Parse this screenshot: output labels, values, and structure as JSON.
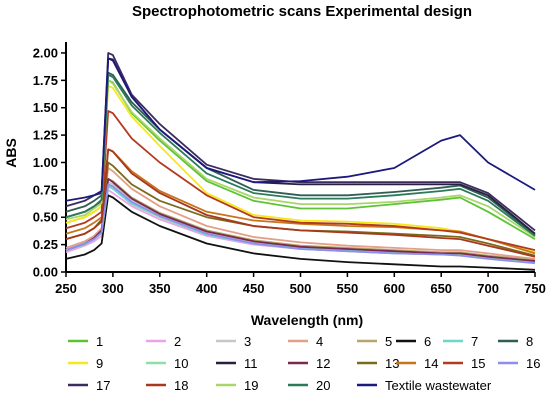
{
  "chart_data": {
    "type": "line",
    "title": "Spectrophotometric scans Experimental design",
    "xlabel": "Wavelength (nm)",
    "ylabel": "ABS",
    "xlim": [
      250,
      750
    ],
    "ylim": [
      0,
      2.1
    ],
    "x_ticks": [
      "250",
      "300",
      "350",
      "400",
      "450",
      "500",
      "550",
      "600",
      "650",
      "700",
      "750"
    ],
    "y_ticks": [
      "0.00",
      "0.25",
      "0.50",
      "0.75",
      "1.00",
      "1.25",
      "1.50",
      "1.75",
      "2.00"
    ],
    "grid": false,
    "legend_position": "bottom",
    "x": [
      250,
      270,
      280,
      288,
      295,
      300,
      320,
      350,
      400,
      450,
      500,
      550,
      600,
      650,
      670,
      700,
      750
    ],
    "series": [
      {
        "name": "1",
        "color": "#5ec236",
        "values": [
          0.45,
          0.5,
          0.55,
          0.6,
          1.75,
          1.73,
          1.45,
          1.2,
          0.83,
          0.65,
          0.58,
          0.58,
          0.62,
          0.66,
          0.68,
          0.55,
          0.3
        ]
      },
      {
        "name": "2",
        "color": "#e9a4e6",
        "values": [
          0.18,
          0.24,
          0.28,
          0.33,
          0.75,
          0.72,
          0.6,
          0.48,
          0.33,
          0.25,
          0.21,
          0.19,
          0.17,
          0.16,
          0.16,
          0.13,
          0.1
        ]
      },
      {
        "name": "3",
        "color": "#c7c7c7",
        "values": [
          0.2,
          0.25,
          0.3,
          0.36,
          0.82,
          0.8,
          0.66,
          0.52,
          0.36,
          0.27,
          0.22,
          0.2,
          0.18,
          0.16,
          0.16,
          0.13,
          0.09
        ]
      },
      {
        "name": "4",
        "color": "#e3a088",
        "values": [
          0.22,
          0.28,
          0.33,
          0.4,
          0.95,
          0.92,
          0.76,
          0.6,
          0.42,
          0.32,
          0.27,
          0.24,
          0.22,
          0.2,
          0.2,
          0.17,
          0.12
        ]
      },
      {
        "name": "5",
        "color": "#b7a56a",
        "values": [
          0.2,
          0.26,
          0.31,
          0.37,
          0.85,
          0.83,
          0.68,
          0.54,
          0.38,
          0.29,
          0.24,
          0.22,
          0.2,
          0.18,
          0.18,
          0.15,
          0.11
        ]
      },
      {
        "name": "6",
        "color": "#111111",
        "values": [
          0.12,
          0.16,
          0.2,
          0.26,
          0.7,
          0.68,
          0.55,
          0.42,
          0.26,
          0.17,
          0.12,
          0.09,
          0.07,
          0.05,
          0.05,
          0.04,
          0.02
        ]
      },
      {
        "name": "7",
        "color": "#6fd6c9",
        "values": [
          0.2,
          0.25,
          0.3,
          0.36,
          0.78,
          0.76,
          0.62,
          0.5,
          0.34,
          0.26,
          0.22,
          0.2,
          0.18,
          0.17,
          0.16,
          0.14,
          0.1
        ]
      },
      {
        "name": "8",
        "color": "#2f5e55",
        "values": [
          0.55,
          0.6,
          0.65,
          0.7,
          1.82,
          1.8,
          1.55,
          1.3,
          0.95,
          0.75,
          0.7,
          0.7,
          0.73,
          0.77,
          0.79,
          0.68,
          0.34
        ]
      },
      {
        "name": "9",
        "color": "#f6e81a",
        "values": [
          0.45,
          0.5,
          0.55,
          0.6,
          1.7,
          1.68,
          1.42,
          1.15,
          0.72,
          0.52,
          0.47,
          0.46,
          0.44,
          0.4,
          0.37,
          0.3,
          0.18
        ]
      },
      {
        "name": "10",
        "color": "#8de0a5",
        "values": [
          0.2,
          0.26,
          0.3,
          0.36,
          0.8,
          0.78,
          0.64,
          0.5,
          0.35,
          0.26,
          0.21,
          0.19,
          0.17,
          0.16,
          0.16,
          0.13,
          0.09
        ]
      },
      {
        "name": "11",
        "color": "#2b1f3f",
        "values": [
          0.5,
          0.55,
          0.6,
          0.65,
          1.95,
          1.93,
          1.6,
          1.3,
          0.95,
          0.82,
          0.8,
          0.8,
          0.8,
          0.8,
          0.8,
          0.7,
          0.35
        ]
      },
      {
        "name": "12",
        "color": "#7b2a4e",
        "values": [
          0.2,
          0.26,
          0.31,
          0.38,
          0.85,
          0.82,
          0.67,
          0.53,
          0.37,
          0.28,
          0.23,
          0.21,
          0.19,
          0.17,
          0.17,
          0.14,
          0.1
        ]
      },
      {
        "name": "13",
        "color": "#7a6a1c",
        "values": [
          0.3,
          0.35,
          0.4,
          0.48,
          1.0,
          0.97,
          0.8,
          0.65,
          0.5,
          0.42,
          0.38,
          0.37,
          0.35,
          0.33,
          0.32,
          0.26,
          0.15
        ]
      },
      {
        "name": "14",
        "color": "#c8741c",
        "values": [
          0.35,
          0.4,
          0.45,
          0.5,
          1.12,
          1.1,
          0.92,
          0.74,
          0.55,
          0.47,
          0.44,
          0.42,
          0.41,
          0.38,
          0.37,
          0.3,
          0.17
        ]
      },
      {
        "name": "15",
        "color": "#b33a1e",
        "values": [
          0.4,
          0.45,
          0.5,
          0.55,
          1.47,
          1.45,
          1.22,
          1.0,
          0.7,
          0.5,
          0.45,
          0.44,
          0.42,
          0.38,
          0.36,
          0.3,
          0.2
        ]
      },
      {
        "name": "16",
        "color": "#8e8ef0",
        "values": [
          0.2,
          0.26,
          0.3,
          0.36,
          0.8,
          0.78,
          0.64,
          0.51,
          0.35,
          0.26,
          0.21,
          0.19,
          0.17,
          0.16,
          0.15,
          0.12,
          0.08
        ]
      },
      {
        "name": "17",
        "color": "#3a2c5e",
        "values": [
          0.6,
          0.65,
          0.7,
          0.72,
          2.0,
          1.98,
          1.62,
          1.35,
          0.98,
          0.85,
          0.82,
          0.82,
          0.82,
          0.82,
          0.82,
          0.72,
          0.38
        ]
      },
      {
        "name": "18",
        "color": "#a8381d",
        "values": [
          0.3,
          0.35,
          0.4,
          0.46,
          1.12,
          1.1,
          0.9,
          0.72,
          0.52,
          0.42,
          0.38,
          0.36,
          0.34,
          0.31,
          0.3,
          0.24,
          0.14
        ]
      },
      {
        "name": "19",
        "color": "#a9d66a",
        "values": [
          0.48,
          0.52,
          0.58,
          0.63,
          1.75,
          1.72,
          1.46,
          1.22,
          0.85,
          0.68,
          0.62,
          0.62,
          0.64,
          0.68,
          0.7,
          0.6,
          0.32
        ]
      },
      {
        "name": "20",
        "color": "#2c7a5a",
        "values": [
          0.5,
          0.55,
          0.6,
          0.66,
          1.8,
          1.78,
          1.52,
          1.27,
          0.9,
          0.72,
          0.67,
          0.67,
          0.7,
          0.74,
          0.76,
          0.65,
          0.33
        ]
      },
      {
        "name": "Textile wastewater",
        "color": "#1c1a7e",
        "values": [
          0.65,
          0.68,
          0.7,
          0.74,
          1.95,
          1.94,
          1.6,
          1.3,
          0.95,
          0.82,
          0.83,
          0.87,
          0.95,
          1.2,
          1.25,
          1.0,
          0.75
        ]
      }
    ]
  }
}
